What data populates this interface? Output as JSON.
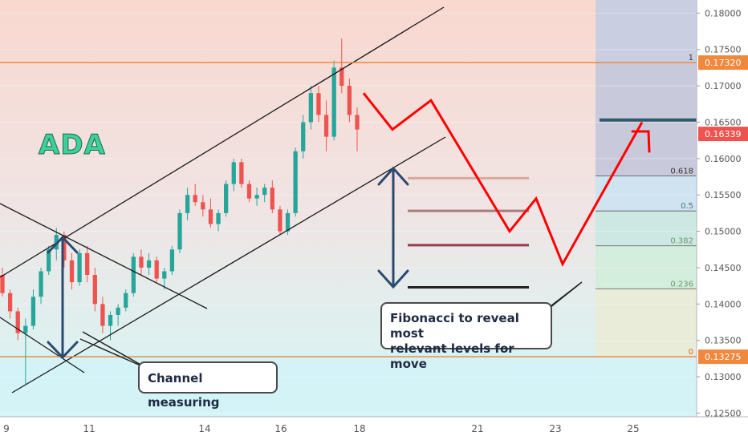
{
  "chart_data": {
    "type": "candlestick",
    "title": "ADA",
    "y_axis": {
      "position": "right",
      "range": [
        0.1245,
        0.1818
      ],
      "ticks": [
        "0.18000",
        "0.17500",
        "0.17000",
        "0.16500",
        "0.16000",
        "0.15500",
        "0.15000",
        "0.14500",
        "0.14000",
        "0.13500",
        "0.13000",
        "0.12500"
      ],
      "tick_values": [
        0.18,
        0.175,
        0.17,
        0.165,
        0.16,
        0.155,
        0.15,
        0.145,
        0.14,
        0.135,
        0.13,
        0.125
      ]
    },
    "x_axis": {
      "ticks": [
        "9",
        "11",
        "14",
        "16",
        "18",
        "21",
        "23",
        "25"
      ]
    },
    "price_markers": [
      {
        "label": "0.17320",
        "value": 0.1732
      },
      {
        "label": "0.16339",
        "value": 0.16339
      },
      {
        "label": "0.13275",
        "value": 0.13275
      }
    ],
    "fibonacci": {
      "levels": [
        {
          "ratio": "1",
          "value": 0.1732
        },
        {
          "ratio": "0.618",
          "value": 0.1576
        },
        {
          "ratio": "0.5",
          "value": 0.1528
        },
        {
          "ratio": "0.382",
          "value": 0.148
        },
        {
          "ratio": "0.236",
          "value": 0.1421
        },
        {
          "ratio": "0",
          "value": 0.13275
        }
      ]
    },
    "horizontal_lines": [
      0.1732,
      0.13275,
      0.1653
    ],
    "target_levels": [
      0.1573,
      0.1528,
      0.1481,
      0.1423
    ],
    "projection_path": [
      0.169,
      0.164,
      0.168,
      0.15,
      0.1545,
      0.1455,
      0.165
    ],
    "candles": [
      {
        "o": 0.144,
        "h": 0.145,
        "l": 0.141,
        "c": 0.1415
      },
      {
        "o": 0.1415,
        "h": 0.142,
        "l": 0.138,
        "c": 0.139
      },
      {
        "o": 0.139,
        "h": 0.1395,
        "l": 0.135,
        "c": 0.136
      },
      {
        "o": 0.136,
        "h": 0.138,
        "l": 0.129,
        "c": 0.137
      },
      {
        "o": 0.137,
        "h": 0.142,
        "l": 0.1365,
        "c": 0.141
      },
      {
        "o": 0.141,
        "h": 0.145,
        "l": 0.14,
        "c": 0.1445
      },
      {
        "o": 0.1445,
        "h": 0.148,
        "l": 0.144,
        "c": 0.1475
      },
      {
        "o": 0.1475,
        "h": 0.1505,
        "l": 0.146,
        "c": 0.1495
      },
      {
        "o": 0.1495,
        "h": 0.15,
        "l": 0.145,
        "c": 0.146
      },
      {
        "o": 0.146,
        "h": 0.147,
        "l": 0.142,
        "c": 0.143
      },
      {
        "o": 0.143,
        "h": 0.1475,
        "l": 0.1425,
        "c": 0.147
      },
      {
        "o": 0.147,
        "h": 0.148,
        "l": 0.143,
        "c": 0.144
      },
      {
        "o": 0.144,
        "h": 0.145,
        "l": 0.139,
        "c": 0.14
      },
      {
        "o": 0.14,
        "h": 0.141,
        "l": 0.136,
        "c": 0.137
      },
      {
        "o": 0.137,
        "h": 0.139,
        "l": 0.135,
        "c": 0.1385
      },
      {
        "o": 0.1385,
        "h": 0.14,
        "l": 0.137,
        "c": 0.1395
      },
      {
        "o": 0.1395,
        "h": 0.142,
        "l": 0.139,
        "c": 0.1415
      },
      {
        "o": 0.1415,
        "h": 0.147,
        "l": 0.141,
        "c": 0.1465
      },
      {
        "o": 0.1465,
        "h": 0.1475,
        "l": 0.144,
        "c": 0.145
      },
      {
        "o": 0.145,
        "h": 0.147,
        "l": 0.144,
        "c": 0.146
      },
      {
        "o": 0.146,
        "h": 0.1465,
        "l": 0.143,
        "c": 0.1435
      },
      {
        "o": 0.1435,
        "h": 0.145,
        "l": 0.142,
        "c": 0.1445
      },
      {
        "o": 0.1445,
        "h": 0.148,
        "l": 0.144,
        "c": 0.1475
      },
      {
        "o": 0.1475,
        "h": 0.153,
        "l": 0.147,
        "c": 0.1525
      },
      {
        "o": 0.1525,
        "h": 0.156,
        "l": 0.1515,
        "c": 0.155
      },
      {
        "o": 0.155,
        "h": 0.1565,
        "l": 0.1535,
        "c": 0.154
      },
      {
        "o": 0.154,
        "h": 0.155,
        "l": 0.152,
        "c": 0.153
      },
      {
        "o": 0.153,
        "h": 0.1545,
        "l": 0.1505,
        "c": 0.151
      },
      {
        "o": 0.151,
        "h": 0.153,
        "l": 0.15,
        "c": 0.1525
      },
      {
        "o": 0.1525,
        "h": 0.157,
        "l": 0.152,
        "c": 0.1565
      },
      {
        "o": 0.1565,
        "h": 0.16,
        "l": 0.1555,
        "c": 0.1595
      },
      {
        "o": 0.1595,
        "h": 0.16,
        "l": 0.156,
        "c": 0.1565
      },
      {
        "o": 0.1565,
        "h": 0.157,
        "l": 0.154,
        "c": 0.1545
      },
      {
        "o": 0.1545,
        "h": 0.156,
        "l": 0.1535,
        "c": 0.155
      },
      {
        "o": 0.155,
        "h": 0.1565,
        "l": 0.154,
        "c": 0.156
      },
      {
        "o": 0.156,
        "h": 0.157,
        "l": 0.1525,
        "c": 0.153
      },
      {
        "o": 0.153,
        "h": 0.1535,
        "l": 0.1495,
        "c": 0.15
      },
      {
        "o": 0.15,
        "h": 0.153,
        "l": 0.1495,
        "c": 0.1525
      },
      {
        "o": 0.1525,
        "h": 0.1615,
        "l": 0.152,
        "c": 0.161
      },
      {
        "o": 0.161,
        "h": 0.166,
        "l": 0.16,
        "c": 0.165
      },
      {
        "o": 0.165,
        "h": 0.17,
        "l": 0.164,
        "c": 0.169
      },
      {
        "o": 0.169,
        "h": 0.17,
        "l": 0.165,
        "c": 0.166
      },
      {
        "o": 0.166,
        "h": 0.168,
        "l": 0.161,
        "c": 0.163
      },
      {
        "o": 0.163,
        "h": 0.1735,
        "l": 0.1625,
        "c": 0.1725
      },
      {
        "o": 0.1725,
        "h": 0.1765,
        "l": 0.169,
        "c": 0.17
      },
      {
        "o": 0.17,
        "h": 0.171,
        "l": 0.165,
        "c": 0.166
      },
      {
        "o": 0.166,
        "h": 0.167,
        "l": 0.161,
        "c": 0.164
      }
    ]
  },
  "annotations": {
    "channel_label": "Channel measuring",
    "fib_label_line1": "Fibonacci to reveal most",
    "fib_label_line2": "relevant levels for move"
  },
  "colors": {
    "up_candle": "#26a69a",
    "down_candle": "#ef5350",
    "orange_line": "#f0883e",
    "projection": "#ff0000",
    "arrow": "#2b4a6f",
    "title_green": "#3ecf9b"
  }
}
